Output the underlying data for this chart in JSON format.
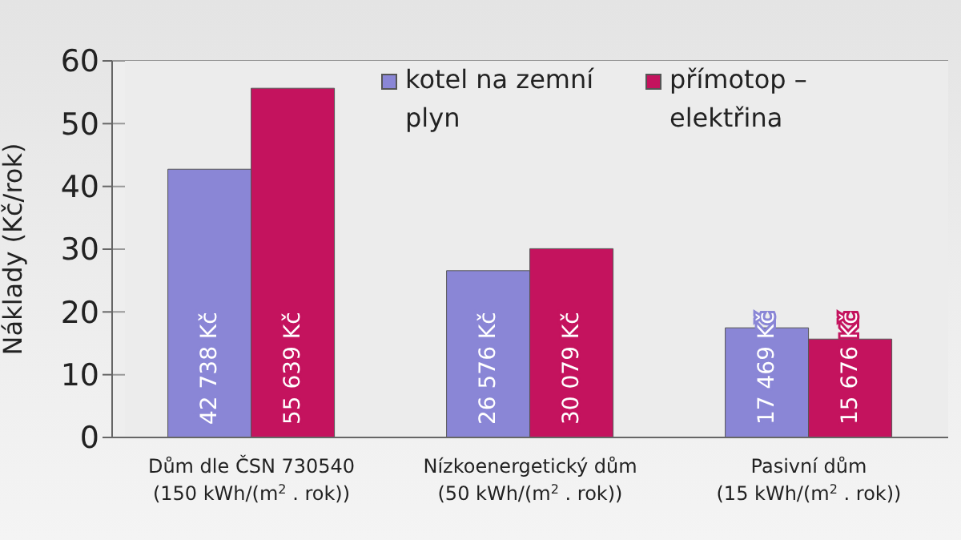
{
  "chart_data": {
    "type": "bar",
    "ylabel": "Náklady (Kč/rok)",
    "categories": [
      "Dům dle ČSN 730540\n(150 kWh/(m$^{2}$ . rok))",
      "Nízkoenergetický dům\n(50 kWh/(m$^{2}$ . rok))",
      "Pasivní dům\n(15 kWh/(m$^{2}$ . rok))"
    ],
    "series": [
      {
        "name": "kotel na zemní plyn",
        "color": "#8a86d6",
        "values": [
          42.738,
          26.576,
          17.469
        ],
        "value_labels": [
          "42 738 Kč",
          "26 576 Kč",
          "17 469 Kč"
        ]
      },
      {
        "name": "přímotop – elektřina",
        "color": "#c4135e",
        "values": [
          55.639,
          30.079,
          15.676
        ],
        "value_labels": [
          "55 639 Kč",
          "30 079 Kč",
          "15 676 Kč"
        ]
      }
    ],
    "ylim": [
      0,
      60
    ],
    "yticks": [
      0,
      10,
      20,
      30,
      40,
      50,
      60
    ],
    "grid": "y",
    "legend": "top"
  }
}
